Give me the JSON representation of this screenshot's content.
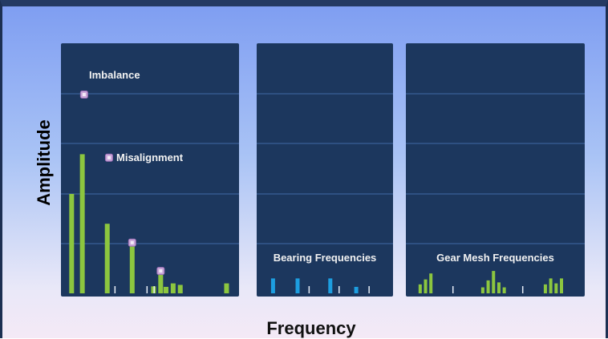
{
  "chart_data": {
    "type": "bar",
    "xlabel": "Frequency",
    "ylabel": "Amplitude",
    "grid": true,
    "panels": [
      {
        "annotations": [
          "Imbalance",
          "Misalignment"
        ],
        "bars": [
          {
            "x": 0.06,
            "y": 2.0
          },
          {
            "x": 0.12,
            "y": 2.8
          },
          {
            "x": 0.26,
            "y": 1.4
          },
          {
            "x": 0.4,
            "y": 1.0
          },
          {
            "x": 0.52,
            "y": 0.14
          },
          {
            "x": 0.56,
            "y": 0.45
          },
          {
            "x": 0.59,
            "y": 0.13
          },
          {
            "x": 0.63,
            "y": 0.2
          },
          {
            "x": 0.67,
            "y": 0.17
          },
          {
            "x": 0.93,
            "y": 0.2
          }
        ],
        "ticks": [
          0.3,
          0.48,
          0.52
        ],
        "markers": [
          {
            "x": 0.13,
            "y": 4.0
          },
          {
            "x": 0.27,
            "y": 2.73
          },
          {
            "x": 0.4,
            "y": 1.02
          },
          {
            "x": 0.56,
            "y": 0.45
          }
        ],
        "color": "#8cc63f"
      },
      {
        "label": "Bearing Frequencies",
        "bars": [
          {
            "x": 0.12,
            "y": 0.3
          },
          {
            "x": 0.3,
            "y": 0.3
          },
          {
            "x": 0.54,
            "y": 0.3
          },
          {
            "x": 0.73,
            "y": 0.13
          }
        ],
        "ticks": [
          0.38,
          0.6,
          0.82
        ],
        "color": "#1d9ee0"
      },
      {
        "label": "Gear Mesh Frequencies",
        "bars": [
          {
            "x": 0.08,
            "y": 0.18
          },
          {
            "x": 0.11,
            "y": 0.28
          },
          {
            "x": 0.14,
            "y": 0.4
          },
          {
            "x": 0.43,
            "y": 0.12
          },
          {
            "x": 0.46,
            "y": 0.26
          },
          {
            "x": 0.49,
            "y": 0.45
          },
          {
            "x": 0.52,
            "y": 0.22
          },
          {
            "x": 0.55,
            "y": 0.12
          },
          {
            "x": 0.78,
            "y": 0.18
          },
          {
            "x": 0.81,
            "y": 0.3
          },
          {
            "x": 0.84,
            "y": 0.2
          },
          {
            "x": 0.87,
            "y": 0.3
          }
        ],
        "ticks": [
          0.26,
          0.65
        ],
        "color": "#8cc63f"
      }
    ]
  }
}
